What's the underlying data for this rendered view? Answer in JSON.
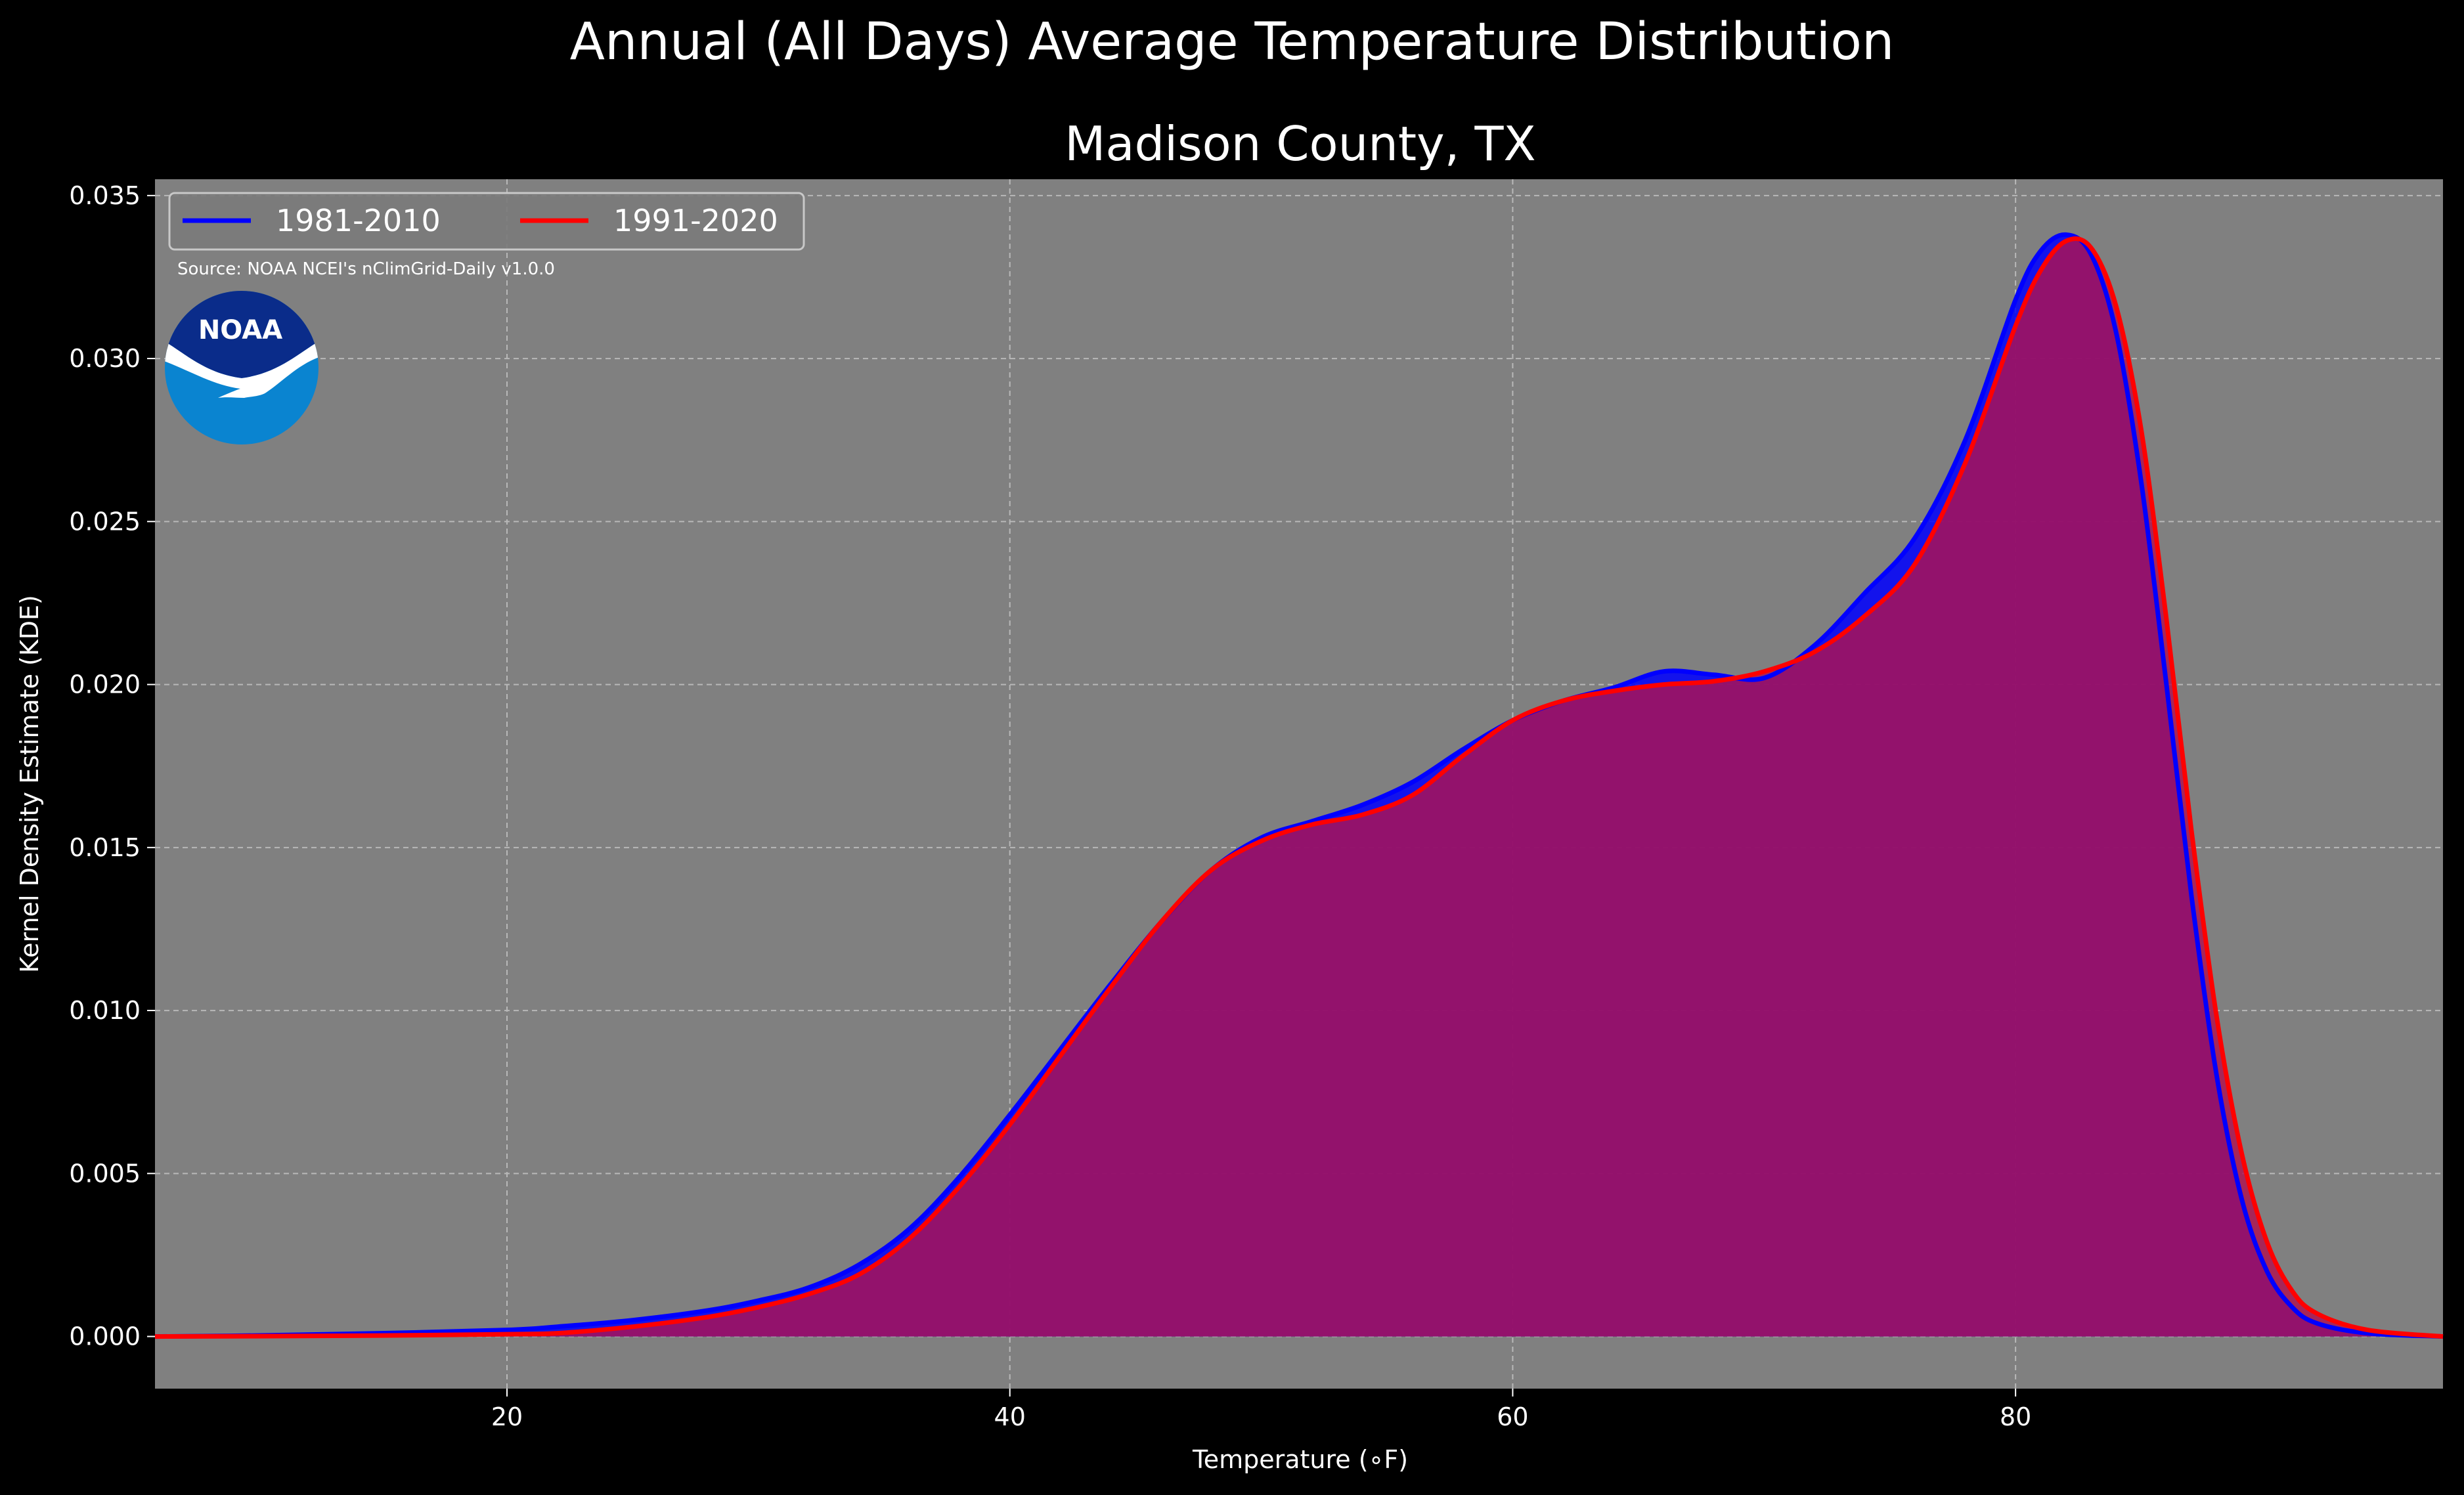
{
  "suptitle": "Annual (All Days) Average Temperature Distribution",
  "chart_data": {
    "type": "area",
    "title": "Madison County, TX",
    "xlabel": "Temperature (∘F)",
    "ylabel": "Kernel Density Estimate (KDE)",
    "xlim": [
      6,
      97
    ],
    "ylim": [
      -0.0016,
      0.0355
    ],
    "xticks": [
      20,
      40,
      60,
      80
    ],
    "yticks": [
      0.0,
      0.005,
      0.01,
      0.015,
      0.02,
      0.025,
      0.03,
      0.035
    ],
    "ytick_labels": [
      "0.000",
      "0.005",
      "0.010",
      "0.015",
      "0.020",
      "0.025",
      "0.030",
      "0.035"
    ],
    "grid": true,
    "legend_position": "top-left",
    "x": [
      6,
      10,
      15,
      20,
      22,
      25,
      28,
      30,
      32,
      34,
      36,
      38,
      40,
      42,
      44,
      46,
      48,
      50,
      52,
      54,
      56,
      58,
      60,
      62,
      64,
      66,
      68,
      70,
      72,
      74,
      76,
      78,
      80,
      81,
      82,
      83,
      84,
      85,
      86,
      87,
      88,
      89,
      90,
      91,
      92,
      94,
      97
    ],
    "series": [
      {
        "name": "1981-2010",
        "color": "#0000ff",
        "fill": "#0000ff",
        "values": [
          0.0,
          3e-05,
          0.0001,
          0.0002,
          0.0003,
          0.0005,
          0.0008,
          0.0011,
          0.0015,
          0.0022,
          0.0033,
          0.0049,
          0.0068,
          0.0088,
          0.0108,
          0.0127,
          0.0143,
          0.0153,
          0.0158,
          0.0163,
          0.017,
          0.018,
          0.0189,
          0.0195,
          0.0199,
          0.0204,
          0.0203,
          0.0202,
          0.0212,
          0.0228,
          0.0245,
          0.0275,
          0.0318,
          0.0333,
          0.0338,
          0.0332,
          0.0308,
          0.0262,
          0.02,
          0.0135,
          0.008,
          0.0042,
          0.002,
          0.0009,
          0.0004,
          0.0001,
          0.0
        ]
      },
      {
        "name": "1991-2020",
        "color": "#ff0000",
        "fill": "#b0124f",
        "values": [
          0.0,
          1e-05,
          3e-05,
          7e-05,
          0.0001,
          0.0003,
          0.0006,
          0.0009,
          0.0013,
          0.0019,
          0.003,
          0.0046,
          0.0065,
          0.0086,
          0.0107,
          0.0127,
          0.0143,
          0.0152,
          0.0157,
          0.016,
          0.0166,
          0.0178,
          0.0189,
          0.0195,
          0.0198,
          0.02,
          0.0201,
          0.0204,
          0.021,
          0.0221,
          0.0237,
          0.0268,
          0.031,
          0.0327,
          0.0336,
          0.0334,
          0.0316,
          0.0278,
          0.022,
          0.0155,
          0.0098,
          0.0056,
          0.0029,
          0.0014,
          0.0007,
          0.0002,
          0.0
        ]
      }
    ]
  },
  "source_note": "Source: NOAA NCEI's nClimGrid-Daily v1.0.0",
  "logo": {
    "text": "NOAA",
    "icon": "noaa-logo-icon",
    "dark_blue": "#0a2c8a",
    "light_blue": "#0a84d0"
  },
  "colors": {
    "background": "#000000",
    "plot_bg": "#808080",
    "grid": "#b8b8b8",
    "text": "#ffffff"
  }
}
